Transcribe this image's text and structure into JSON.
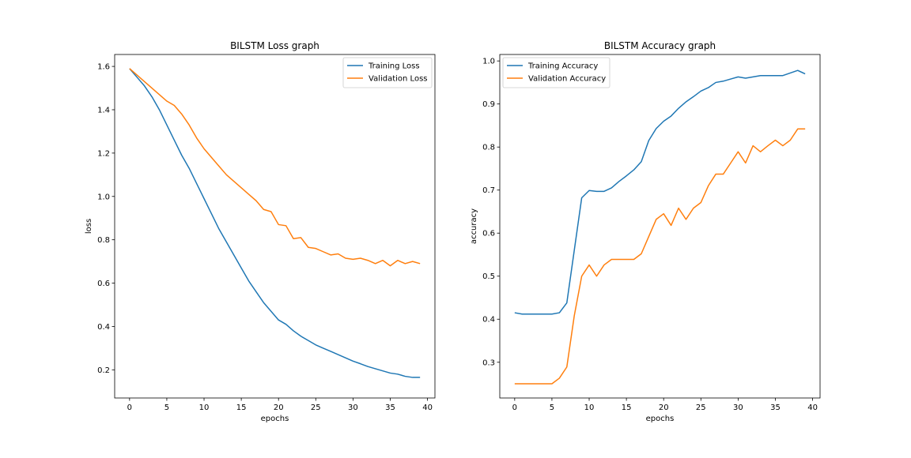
{
  "figure": {
    "background": "#ffffff"
  },
  "chart_data": [
    {
      "type": "line",
      "title": "BILSTM Loss graph",
      "xlabel": "epochs",
      "ylabel": "loss",
      "xlim": [
        -2,
        41
      ],
      "ylim": [
        0.07,
        1.655
      ],
      "xticks": [
        0,
        5,
        10,
        15,
        20,
        25,
        30,
        35,
        40
      ],
      "yticks": [
        0.2,
        0.4,
        0.6,
        0.8,
        1.0,
        1.2,
        1.4,
        1.6
      ],
      "ytick_labels": [
        "0.2",
        "0.4",
        "0.6",
        "0.8",
        "1.0",
        "1.2",
        "1.4",
        "1.6"
      ],
      "legend_position": "top-right",
      "x": [
        0,
        1,
        2,
        3,
        4,
        5,
        6,
        7,
        8,
        9,
        10,
        11,
        12,
        13,
        14,
        15,
        16,
        17,
        18,
        19,
        20,
        21,
        22,
        23,
        24,
        25,
        26,
        27,
        28,
        29,
        30,
        31,
        32,
        33,
        34,
        35,
        36,
        37,
        38,
        39
      ],
      "series": [
        {
          "name": "Training Loss",
          "color": "#1f77b4",
          "values": [
            1.59,
            1.55,
            1.51,
            1.46,
            1.4,
            1.33,
            1.26,
            1.19,
            1.13,
            1.06,
            0.99,
            0.92,
            0.85,
            0.79,
            0.73,
            0.67,
            0.61,
            0.56,
            0.51,
            0.47,
            0.43,
            0.41,
            0.38,
            0.355,
            0.335,
            0.315,
            0.3,
            0.285,
            0.27,
            0.255,
            0.24,
            0.228,
            0.215,
            0.205,
            0.195,
            0.185,
            0.18,
            0.17,
            0.165,
            0.165
          ]
        },
        {
          "name": "Validation Loss",
          "color": "#ff7f0e",
          "values": [
            1.59,
            1.56,
            1.53,
            1.5,
            1.47,
            1.44,
            1.42,
            1.38,
            1.33,
            1.27,
            1.22,
            1.18,
            1.14,
            1.1,
            1.07,
            1.04,
            1.01,
            0.98,
            0.94,
            0.93,
            0.87,
            0.865,
            0.805,
            0.81,
            0.765,
            0.76,
            0.745,
            0.73,
            0.735,
            0.715,
            0.71,
            0.715,
            0.705,
            0.69,
            0.705,
            0.68,
            0.705,
            0.69,
            0.7,
            0.69
          ]
        }
      ]
    },
    {
      "type": "line",
      "title": "BILSTM Accuracy graph",
      "xlabel": "epochs",
      "ylabel": "accuracy",
      "xlim": [
        -2,
        41
      ],
      "ylim": [
        0.217,
        1.015
      ],
      "xticks": [
        0,
        5,
        10,
        15,
        20,
        25,
        30,
        35,
        40
      ],
      "yticks": [
        0.3,
        0.4,
        0.5,
        0.6,
        0.7,
        0.8,
        0.9,
        1.0
      ],
      "ytick_labels": [
        "0.3",
        "0.4",
        "0.5",
        "0.6",
        "0.7",
        "0.8",
        "0.9",
        "1.0"
      ],
      "legend_position": "top-left",
      "x": [
        0,
        1,
        2,
        3,
        4,
        5,
        6,
        7,
        8,
        9,
        10,
        11,
        12,
        13,
        14,
        15,
        16,
        17,
        18,
        19,
        20,
        21,
        22,
        23,
        24,
        25,
        26,
        27,
        28,
        29,
        30,
        31,
        32,
        33,
        34,
        35,
        36,
        37,
        38,
        39
      ],
      "series": [
        {
          "name": "Training Accuracy",
          "color": "#1f77b4",
          "values": [
            0.415,
            0.412,
            0.412,
            0.412,
            0.412,
            0.412,
            0.415,
            0.438,
            0.56,
            0.682,
            0.699,
            0.697,
            0.697,
            0.705,
            0.72,
            0.733,
            0.747,
            0.766,
            0.815,
            0.843,
            0.86,
            0.872,
            0.89,
            0.905,
            0.917,
            0.93,
            0.938,
            0.95,
            0.953,
            0.958,
            0.963,
            0.96,
            0.963,
            0.966,
            0.966,
            0.966,
            0.966,
            0.972,
            0.978,
            0.97
          ]
        },
        {
          "name": "Validation Accuracy",
          "color": "#ff7f0e",
          "values": [
            0.25,
            0.25,
            0.25,
            0.25,
            0.25,
            0.25,
            0.263,
            0.289,
            0.408,
            0.5,
            0.526,
            0.5,
            0.526,
            0.539,
            0.539,
            0.539,
            0.539,
            0.552,
            0.592,
            0.632,
            0.645,
            0.618,
            0.658,
            0.632,
            0.658,
            0.671,
            0.71,
            0.737,
            0.737,
            0.763,
            0.789,
            0.763,
            0.803,
            0.789,
            0.803,
            0.816,
            0.803,
            0.816,
            0.842,
            0.842
          ]
        }
      ]
    }
  ]
}
